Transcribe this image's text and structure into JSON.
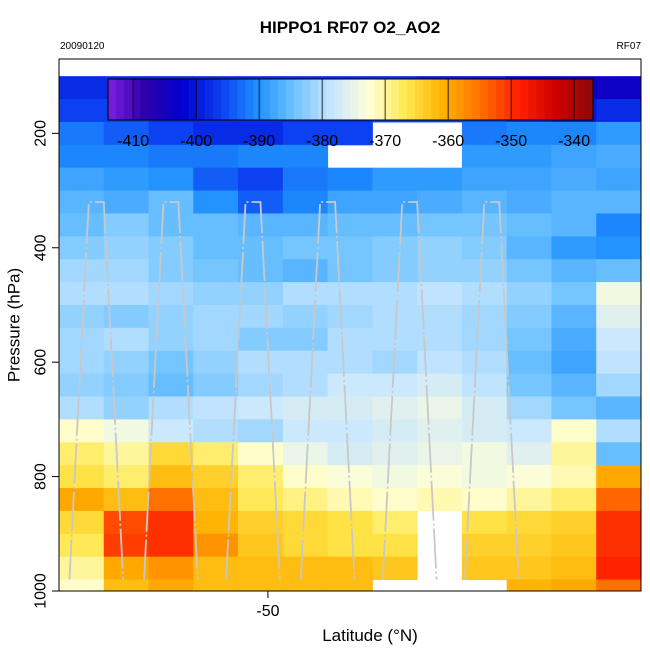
{
  "chart_data": {
    "type": "heatmap",
    "title": "HIPPO1 RF07 O2_AO2",
    "subtitle_left": "20090120",
    "subtitle_right": "RF07",
    "xlabel": "Latitude (°N)",
    "ylabel": "Pressure (hPa)",
    "x_ticks": [
      -50
    ],
    "y_ticks": [
      200,
      400,
      600,
      800,
      1000
    ],
    "xlim": [
      -64,
      -25
    ],
    "ylim": [
      1000,
      70
    ],
    "y_inverted": true,
    "colorbar": {
      "ticks": [
        -410,
        -400,
        -390,
        -380,
        -370,
        -360,
        -350,
        -340
      ],
      "range": [
        -414,
        -337
      ],
      "colors": [
        "#7b1fe0",
        "#2d00a8",
        "#0000d0",
        "#0b3ef0",
        "#1e90ff",
        "#6fc3ff",
        "#c8e6ff",
        "#ffffd6",
        "#ffe84d",
        "#ffb000",
        "#ff7000",
        "#ff2000",
        "#d00000",
        "#8a0a0a"
      ]
    },
    "levels": [
      120,
      160,
      200,
      240,
      280,
      320,
      360,
      400,
      440,
      480,
      520,
      560,
      600,
      640,
      680,
      720,
      760,
      800,
      840,
      880,
      920,
      960,
      1000
    ],
    "lat_bins": [
      -64,
      -61,
      -58,
      -55,
      -52,
      -49,
      -46,
      -43,
      -40,
      -37,
      -34,
      -31,
      -28,
      -25
    ],
    "grid": [
      [
        -398,
        -398,
        -398,
        -398,
        -398,
        -398,
        -398,
        -398,
        -400,
        -400,
        -402,
        -404,
        -404
      ],
      [
        -396,
        -396,
        -398,
        -398,
        -398,
        -398,
        -398,
        -396,
        -396,
        -396,
        -398,
        -400,
        -398
      ],
      [
        -392,
        -394,
        -396,
        -398,
        -398,
        -396,
        -396,
        null,
        null,
        -392,
        -391,
        -391,
        -389
      ],
      [
        -391,
        -391,
        -392,
        -392,
        -391,
        -391,
        null,
        null,
        null,
        -389,
        -389,
        -388,
        -387
      ],
      [
        -388,
        -389,
        -390,
        -394,
        -396,
        -392,
        -391,
        -389,
        -389,
        -388,
        -388,
        -387,
        -388
      ],
      [
        -386,
        -387,
        -385,
        -390,
        -394,
        -391,
        -388,
        -388,
        -387,
        -386,
        -387,
        -386,
        -386
      ],
      [
        -385,
        -383,
        -385,
        -385,
        -386,
        -386,
        -385,
        -385,
        -384,
        -384,
        -385,
        -386,
        -391
      ],
      [
        -383,
        -382,
        -383,
        -385,
        -385,
        -384,
        -384,
        -383,
        -382,
        -383,
        -386,
        -389,
        -390
      ],
      [
        -381,
        -381,
        -383,
        -384,
        -385,
        -386,
        -384,
        -383,
        -382,
        -382,
        -384,
        -386,
        -385
      ],
      [
        -380,
        -380,
        -381,
        -382,
        -382,
        -380,
        -380,
        -380,
        -379,
        -380,
        -382,
        -384,
        -374
      ],
      [
        -382,
        -383,
        -382,
        -381,
        -381,
        -382,
        -381,
        -380,
        -380,
        -381,
        -383,
        -386,
        -376
      ],
      [
        -381,
        -380,
        -382,
        -381,
        -383,
        -383,
        -380,
        -380,
        -380,
        -381,
        -384,
        -387,
        -378
      ],
      [
        -381,
        -382,
        -384,
        -382,
        -380,
        -380,
        -380,
        -381,
        -379,
        -380,
        -385,
        -388,
        -379
      ],
      [
        -382,
        -383,
        -385,
        -383,
        -381,
        -380,
        -378,
        -378,
        -377,
        -379,
        -384,
        -386,
        -381
      ],
      [
        -380,
        -382,
        -380,
        -379,
        -378,
        -377,
        -377,
        -376,
        -375,
        -377,
        -381,
        -384,
        -386
      ],
      [
        -372,
        -374,
        -378,
        -380,
        -381,
        -378,
        -378,
        -377,
        -376,
        -377,
        -378,
        -372,
        -380
      ],
      [
        -368,
        -370,
        -365,
        -368,
        -372,
        -375,
        -377,
        -376,
        -375,
        -374,
        -376,
        -370,
        -385
      ],
      [
        -366,
        -368,
        -362,
        -364,
        -368,
        -372,
        -373,
        -374,
        -373,
        -374,
        -373,
        -371,
        -360
      ],
      [
        -360,
        -362,
        -355,
        -362,
        -367,
        -369,
        -371,
        -372,
        -371,
        -372,
        -370,
        -368,
        -354
      ],
      [
        -365,
        -352,
        -350,
        -361,
        -364,
        -365,
        -366,
        -368,
        null,
        -366,
        -365,
        -364,
        -350
      ],
      [
        -367,
        -351,
        -350,
        -358,
        -363,
        -365,
        -366,
        -366,
        null,
        -364,
        -364,
        -363,
        -350
      ],
      [
        -370,
        -360,
        -358,
        -362,
        -362,
        -362,
        -362,
        -363,
        null,
        -363,
        -363,
        -362,
        -349
      ],
      [
        -372,
        -362,
        -360,
        -362,
        -362,
        -362,
        -362,
        null,
        null,
        null,
        -361,
        -360,
        -355
      ]
    ],
    "upper_row": {
      "pressure_range": [
        70,
        120
      ],
      "lat_range": [
        -49,
        -30.5
      ],
      "values": [
        -410,
        -412,
        -413,
        -411,
        -404,
        -400,
        -399,
        -403,
        -407,
        -410,
        -411,
        -411
      ]
    },
    "flight_segments": [
      {
        "lat": -59.5,
        "pressure": 165
      },
      {
        "lat": -54.5,
        "pressure": 165
      },
      {
        "lat": -53,
        "pressure": 150
      },
      {
        "lat": -46.5,
        "pressure": 150
      },
      {
        "lat": -45.5,
        "pressure": 140
      },
      {
        "lat": -41,
        "pressure": 130
      },
      {
        "lat": -37,
        "pressure": 130
      },
      {
        "lat": -34,
        "pressure": 130
      }
    ]
  }
}
